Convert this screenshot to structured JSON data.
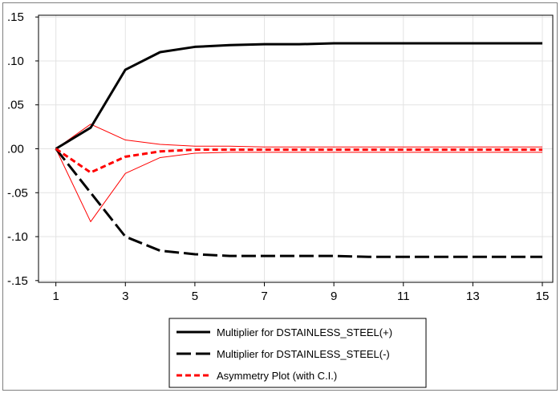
{
  "chart_data": {
    "type": "line",
    "x": [
      1,
      2,
      3,
      4,
      5,
      6,
      7,
      8,
      9,
      10,
      11,
      12,
      13,
      14,
      15
    ],
    "xticks": [
      "1",
      "3",
      "5",
      "7",
      "9",
      "11",
      "13",
      "15"
    ],
    "xtick_values": [
      1,
      3,
      5,
      7,
      9,
      11,
      13,
      15
    ],
    "yticks": [
      ".15",
      ".10",
      ".05",
      ".00",
      "-.05",
      "-.10",
      "-.15"
    ],
    "ytick_values": [
      0.15,
      0.1,
      0.05,
      0.0,
      -0.05,
      -0.1,
      -0.15
    ],
    "xlim": [
      0.5,
      15.3
    ],
    "ylim": [
      -0.152,
      0.152
    ],
    "grid": true,
    "legend_position": "bottom",
    "series": [
      {
        "name": "Multiplier for DSTAINLESS_STEEL(+)",
        "style": "solid",
        "color": "#000000",
        "values": [
          0.0,
          0.024,
          0.09,
          0.11,
          0.116,
          0.118,
          0.119,
          0.119,
          0.12,
          0.12,
          0.12,
          0.12,
          0.12,
          0.12,
          0.12
        ]
      },
      {
        "name": "Multiplier for DSTAINLESS_STEEL(-)",
        "style": "long-dash",
        "color": "#000000",
        "values": [
          0.0,
          -0.05,
          -0.1,
          -0.116,
          -0.12,
          -0.122,
          -0.122,
          -0.122,
          -0.122,
          -0.123,
          -0.123,
          -0.123,
          -0.123,
          -0.123,
          -0.123
        ]
      },
      {
        "name": "Asymmetry Plot (with C.I.)",
        "style": "short-dash",
        "color": "#ff0000",
        "values": [
          0.0,
          -0.027,
          -0.009,
          -0.003,
          -0.001,
          -0.001,
          -0.001,
          -0.001,
          -0.001,
          -0.001,
          -0.001,
          -0.001,
          -0.001,
          -0.001,
          -0.001
        ]
      },
      {
        "style": "thin",
        "color": "#ff0000",
        "values": [
          0.0,
          0.028,
          0.01,
          0.005,
          0.003,
          0.003,
          0.002,
          0.002,
          0.002,
          0.002,
          0.002,
          0.002,
          0.002,
          0.002,
          0.002
        ]
      },
      {
        "style": "thin",
        "color": "#ff0000",
        "values": [
          0.0,
          -0.083,
          -0.028,
          -0.01,
          -0.005,
          -0.004,
          -0.004,
          -0.004,
          -0.004,
          -0.004,
          -0.004,
          -0.004,
          -0.004,
          -0.004,
          -0.004
        ]
      }
    ]
  }
}
